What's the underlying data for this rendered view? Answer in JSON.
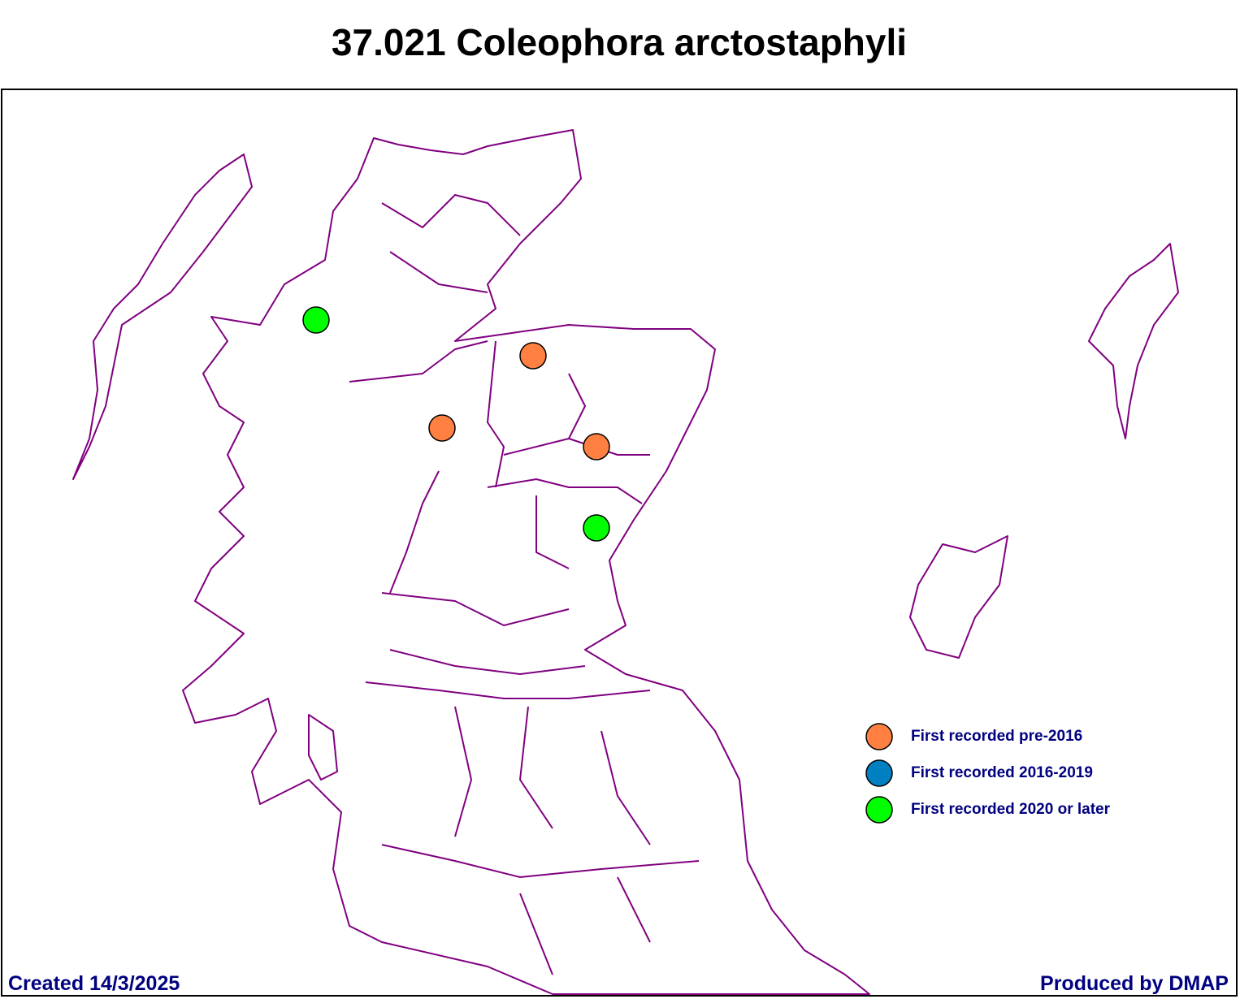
{
  "title": "37.021 Coleophora arctostaphyli",
  "legend": [
    {
      "label": "First recorded pre-2016",
      "color": "#ff8040"
    },
    {
      "label": "First recorded 2016-2019",
      "color": "#0080c0"
    },
    {
      "label": "First recorded 2020 or later",
      "color": "#00ff00"
    }
  ],
  "footer": {
    "created": "Created 14/3/2025",
    "produced": "Produced by DMAP"
  }
}
